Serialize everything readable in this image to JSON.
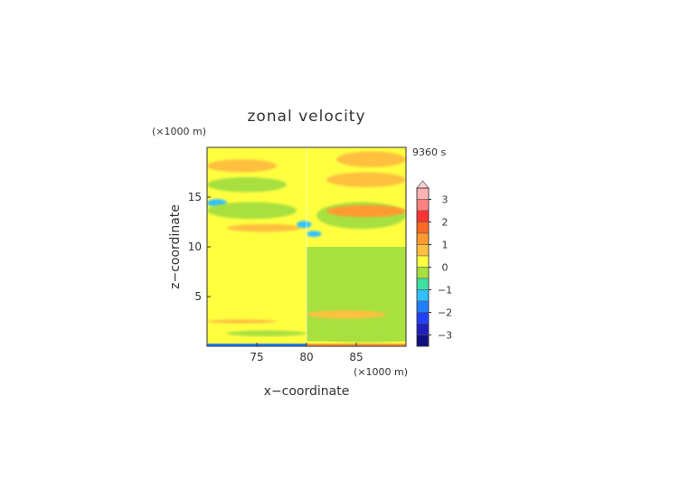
{
  "chart_data": {
    "type": "heatmap",
    "title": "zonal velocity",
    "xlabel": "x−coordinate",
    "ylabel": "z−coordinate",
    "x_unit": "(×1000 m)",
    "y_unit": "(×1000 m)",
    "time_label": "9360 s",
    "xlim": [
      70,
      90
    ],
    "ylim": [
      0,
      20
    ],
    "x_ticks": [
      75,
      80,
      85
    ],
    "y_ticks": [
      5,
      10,
      15
    ],
    "colorbar": {
      "tick_labels": [
        "3",
        "2",
        "1",
        "0",
        "−1",
        "−2",
        "−3"
      ],
      "tick_values": [
        3,
        2,
        1,
        0,
        -1,
        -2,
        -3
      ],
      "levels": [
        {
          "from": 3.0,
          "to": 3.5,
          "color": "#ffb3b3"
        },
        {
          "from": 2.5,
          "to": 3.0,
          "color": "#ff8080"
        },
        {
          "from": 2.0,
          "to": 2.5,
          "color": "#ff3333"
        },
        {
          "from": 1.5,
          "to": 2.0,
          "color": "#ff6a20"
        },
        {
          "from": 1.0,
          "to": 1.5,
          "color": "#ff9a30"
        },
        {
          "from": 0.5,
          "to": 1.0,
          "color": "#ffc040"
        },
        {
          "from": 0.0,
          "to": 0.5,
          "color": "#ffff40"
        },
        {
          "from": -0.5,
          "to": 0.0,
          "color": "#a8e040"
        },
        {
          "from": -1.0,
          "to": -0.5,
          "color": "#40e0a0"
        },
        {
          "from": -1.5,
          "to": -1.0,
          "color": "#30c0ff"
        },
        {
          "from": -2.0,
          "to": -1.5,
          "color": "#2080ff"
        },
        {
          "from": -2.5,
          "to": -2.0,
          "color": "#2040ff"
        },
        {
          "from": -3.0,
          "to": -2.5,
          "color": "#2020c0"
        },
        {
          "from": -3.5,
          "to": -3.0,
          "color": "#101080"
        }
      ],
      "extend": "max"
    },
    "background_fields": [
      {
        "region": "x < 80, z 7-10",
        "value": 0.3
      },
      {
        "region": "x > 80, z 0.5-10",
        "value": -0.2
      },
      {
        "region": "z > 10",
        "value": 0.2
      }
    ],
    "features": [
      {
        "x": [
          70,
          77
        ],
        "z": [
          2.3,
          2.7
        ],
        "value": 0.7
      },
      {
        "x": [
          72,
          80
        ],
        "z": [
          1.0,
          1.6
        ],
        "value": -0.3
      },
      {
        "x": [
          82,
          90
        ],
        "z": [
          0.4,
          1.0
        ],
        "value": -0.3
      },
      {
        "x": [
          80,
          88
        ],
        "z": [
          2.8,
          3.6
        ],
        "value": 0.7
      },
      {
        "x": [
          70,
          72
        ],
        "z": [
          14.0,
          14.8
        ],
        "value": -1.2
      },
      {
        "x": [
          70,
          79
        ],
        "z": [
          12.8,
          14.5
        ],
        "value": -0.4
      },
      {
        "x": [
          72,
          79.5
        ],
        "z": [
          11.5,
          12.3
        ],
        "value": 0.8
      },
      {
        "x": [
          79,
          80.5
        ],
        "z": [
          11.9,
          12.6
        ],
        "value": -1.3
      },
      {
        "x": [
          80,
          81.5
        ],
        "z": [
          11.0,
          11.6
        ],
        "value": -1.2
      },
      {
        "x": [
          81,
          90
        ],
        "z": [
          11.8,
          14.5
        ],
        "value": -0.4
      },
      {
        "x": [
          82,
          90
        ],
        "z": [
          13.0,
          14.2
        ],
        "value": 1.0
      },
      {
        "x": [
          82,
          90
        ],
        "z": [
          16.0,
          17.5
        ],
        "value": 0.8
      },
      {
        "x": [
          70,
          78
        ],
        "z": [
          15.5,
          17.0
        ],
        "value": -0.4
      },
      {
        "x": [
          70,
          77
        ],
        "z": [
          17.5,
          18.8
        ],
        "value": 0.7
      },
      {
        "x": [
          83,
          90
        ],
        "z": [
          18.0,
          19.6
        ],
        "value": 0.8
      }
    ]
  }
}
